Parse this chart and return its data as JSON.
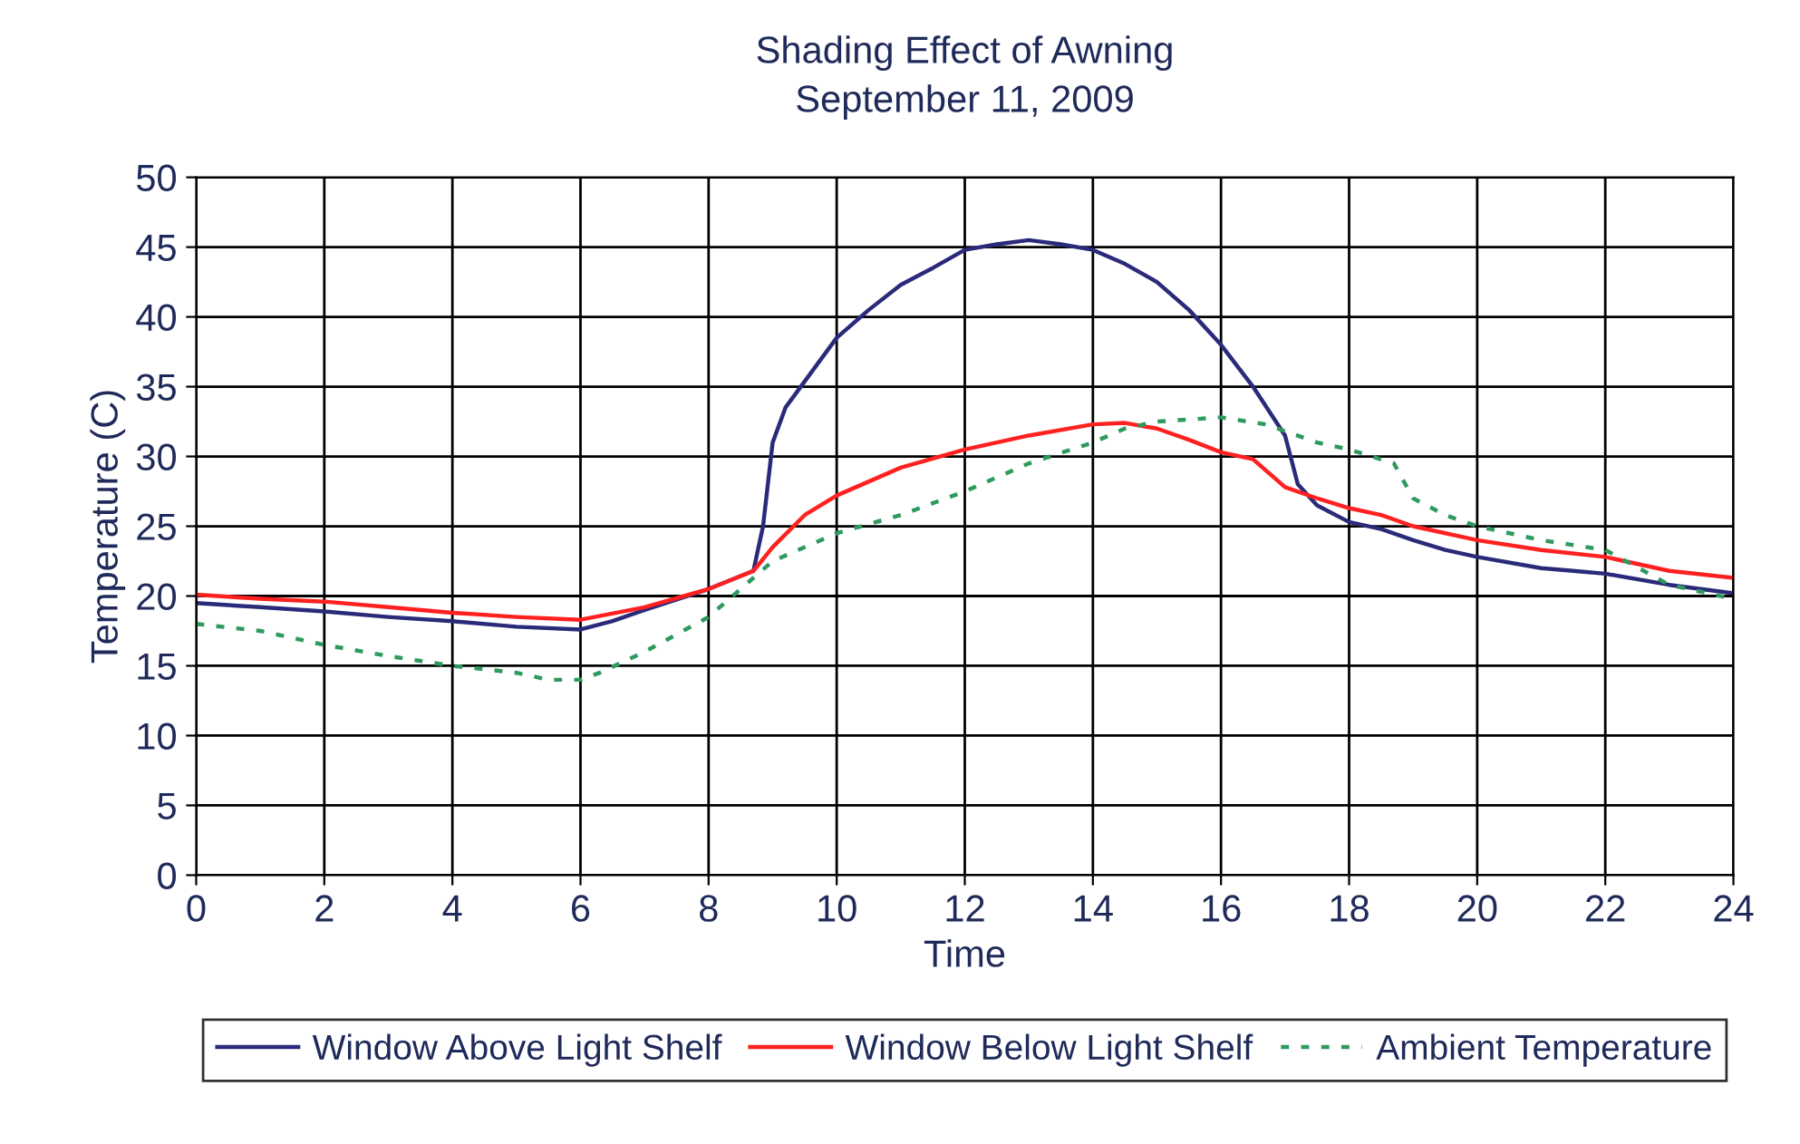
{
  "chart_data": {
    "type": "line",
    "title": "Shading Effect of Awning\nSeptember 11, 2009",
    "xlabel": "Time",
    "ylabel": "Temperature (C)",
    "xlim": [
      0,
      24
    ],
    "xticks": [
      0,
      2,
      4,
      6,
      8,
      10,
      12,
      14,
      16,
      18,
      20,
      22,
      24
    ],
    "ylim": [
      0,
      50
    ],
    "yticks": [
      0,
      5,
      10,
      15,
      20,
      25,
      30,
      35,
      40,
      45,
      50
    ],
    "grid": true,
    "legend": "bottom",
    "marker": "none",
    "series": [
      {
        "name": "Window Above Light Shelf",
        "color": "#2a2a7a",
        "line_style": "solid",
        "x": [
          0,
          1,
          2,
          3,
          4,
          5,
          6,
          6.5,
          7,
          8,
          8.7,
          8.85,
          9,
          9.2,
          9.6,
          10,
          10.5,
          11,
          11.5,
          12,
          12.5,
          13,
          13.5,
          14,
          14.5,
          15,
          15.5,
          16,
          16.5,
          17,
          17.2,
          17.5,
          18,
          18.5,
          19,
          19.5,
          20,
          21,
          21.5,
          22,
          23,
          24
        ],
        "values": [
          19.5,
          19.2,
          18.9,
          18.5,
          18.2,
          17.8,
          17.6,
          18.2,
          19,
          20.5,
          21.8,
          25,
          31,
          33.5,
          36,
          38.5,
          40.5,
          42.3,
          43.5,
          44.8,
          45.2,
          45.5,
          45.2,
          44.8,
          43.8,
          42.5,
          40.5,
          38,
          35,
          31.5,
          28,
          26.5,
          25.3,
          24.8,
          24,
          23.3,
          22.8,
          22,
          21.8,
          21.6,
          20.8,
          20.2
        ]
      },
      {
        "name": "Window Below Light Shelf",
        "color": "#ff2020",
        "line_style": "solid",
        "x": [
          0,
          1,
          2,
          3,
          4,
          5,
          6,
          7,
          8,
          8.7,
          9,
          9.5,
          10,
          11,
          12,
          12.5,
          13,
          14,
          14.5,
          15,
          15.5,
          16,
          16.5,
          17,
          17.5,
          18,
          18.5,
          19,
          20,
          21,
          22,
          23,
          24
        ],
        "values": [
          20.1,
          19.8,
          19.6,
          19.2,
          18.8,
          18.5,
          18.3,
          19.2,
          20.5,
          21.8,
          23.5,
          25.8,
          27.2,
          29.2,
          30.5,
          31,
          31.5,
          32.3,
          32.4,
          32,
          31.2,
          30.3,
          29.8,
          27.8,
          27,
          26.3,
          25.8,
          25,
          24,
          23.3,
          22.8,
          21.8,
          21.3
        ]
      },
      {
        "name": "Ambient Temperature",
        "color": "#2e9a5e",
        "line_style": "dotted",
        "x": [
          0,
          1,
          2,
          3,
          4,
          5,
          5.5,
          6,
          6.3,
          7,
          8,
          8.5,
          9,
          10,
          11,
          12,
          13,
          14,
          14.5,
          15,
          16,
          16.7,
          17.5,
          18,
          18.7,
          19,
          19.5,
          20,
          21,
          22,
          23,
          24
        ],
        "values": [
          18,
          17.5,
          16.5,
          15.7,
          15,
          14.5,
          14,
          14,
          14.5,
          16,
          18.5,
          20.5,
          22.5,
          24.5,
          25.8,
          27.5,
          29.5,
          31,
          32,
          32.5,
          32.8,
          32.3,
          31,
          30.5,
          29.5,
          27,
          25.8,
          25,
          24,
          23.3,
          20.8,
          19.8
        ]
      }
    ]
  }
}
